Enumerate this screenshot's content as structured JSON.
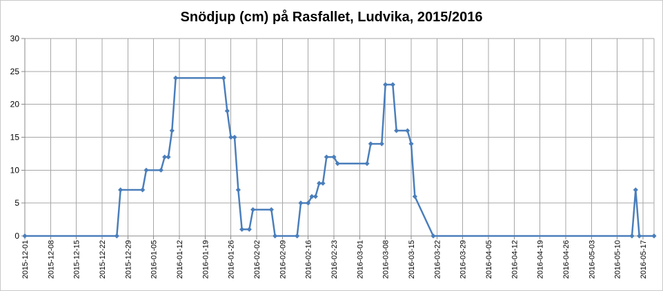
{
  "chart_data": {
    "type": "line",
    "title": "Snödjup (cm) på Rasfallet, Ludvika, 2015/2016",
    "xlabel": "",
    "ylabel": "",
    "ylim": [
      0,
      30
    ],
    "yticks": [
      0,
      5,
      10,
      15,
      20,
      25,
      30
    ],
    "xlim": [
      "2015-12-01",
      "2016-05-20"
    ],
    "xticks": [
      "2015-12-01",
      "2015-12-08",
      "2015-12-15",
      "2015-12-22",
      "2015-12-29",
      "2016-01-05",
      "2016-01-12",
      "2016-01-19",
      "2016-01-26",
      "2016-02-02",
      "2016-02-09",
      "2016-02-16",
      "2016-02-23",
      "2016-03-01",
      "2016-03-08",
      "2016-03-15",
      "2016-03-22",
      "2016-03-29",
      "2016-04-05",
      "2016-04-12",
      "2016-04-19",
      "2016-04-26",
      "2016-05-03",
      "2016-05-10",
      "2016-05-17"
    ],
    "grid": true,
    "legend": "none",
    "line_color": "#4a7ebb",
    "series": [
      {
        "points": [
          [
            "2015-12-01",
            0
          ],
          [
            "2015-12-26",
            0
          ],
          [
            "2015-12-27",
            7
          ],
          [
            "2016-01-02",
            7
          ],
          [
            "2016-01-03",
            10
          ],
          [
            "2016-01-07",
            10
          ],
          [
            "2016-01-08",
            12
          ],
          [
            "2016-01-09",
            12
          ],
          [
            "2016-01-10",
            16
          ],
          [
            "2016-01-11",
            24
          ],
          [
            "2016-01-24",
            24
          ],
          [
            "2016-01-25",
            19
          ],
          [
            "2016-01-26",
            15
          ],
          [
            "2016-01-27",
            15
          ],
          [
            "2016-01-28",
            7
          ],
          [
            "2016-01-29",
            1
          ],
          [
            "2016-01-31",
            1
          ],
          [
            "2016-02-01",
            4
          ],
          [
            "2016-02-06",
            4
          ],
          [
            "2016-02-07",
            0
          ],
          [
            "2016-02-13",
            0
          ],
          [
            "2016-02-14",
            5
          ],
          [
            "2016-02-16",
            5
          ],
          [
            "2016-02-17",
            6
          ],
          [
            "2016-02-18",
            6
          ],
          [
            "2016-02-19",
            8
          ],
          [
            "2016-02-20",
            8
          ],
          [
            "2016-02-21",
            12
          ],
          [
            "2016-02-23",
            12
          ],
          [
            "2016-02-24",
            11
          ],
          [
            "2016-03-03",
            11
          ],
          [
            "2016-03-04",
            14
          ],
          [
            "2016-03-07",
            14
          ],
          [
            "2016-03-08",
            23
          ],
          [
            "2016-03-10",
            23
          ],
          [
            "2016-03-11",
            16
          ],
          [
            "2016-03-14",
            16
          ],
          [
            "2016-03-15",
            14
          ],
          [
            "2016-03-16",
            6
          ],
          [
            "2016-03-21",
            0
          ],
          [
            "2016-05-14",
            0
          ],
          [
            "2016-05-15",
            7
          ],
          [
            "2016-05-16",
            0
          ],
          [
            "2016-05-20",
            0
          ]
        ]
      }
    ]
  }
}
